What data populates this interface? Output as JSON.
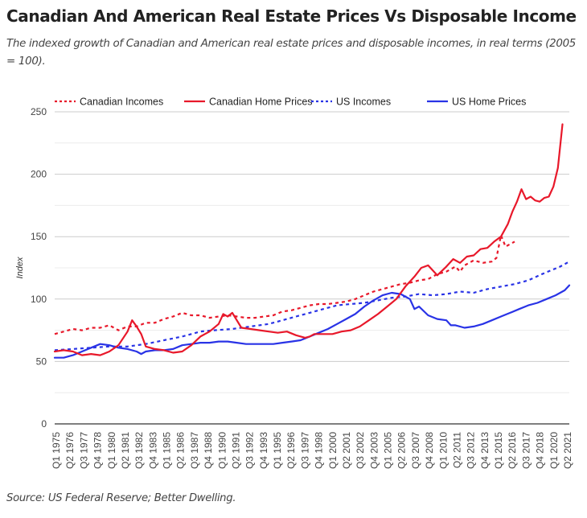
{
  "header": {
    "title": "Canadian And American Real Estate Prices Vs Disposable Income",
    "subtitle": "The indexed growth of Canadian and American real estate prices and disposable incomes, in real terms (2005 = 100)."
  },
  "footer": {
    "source": "Source: US Federal Reserve; Better Dwelling."
  },
  "chart_data": {
    "type": "line",
    "title": "Canadian And American Real Estate Prices Vs Disposable Income",
    "subtitle": "The indexed growth of Canadian and American real estate prices and disposable incomes, in real terms (2005 = 100).",
    "xlabel": "",
    "ylabel": "Index",
    "ylim": [
      0,
      250
    ],
    "yticks": [
      0,
      50,
      100,
      150,
      200,
      250
    ],
    "minor_gridlines": [
      25,
      75,
      125,
      175,
      225
    ],
    "grid": true,
    "legend_position": "top",
    "x_domain_quarters": [
      0,
      185
    ],
    "x_start_label": "Q1 1975",
    "x_end_label": "Q2 2021",
    "x_tick_labels": [
      "Q1 1975",
      "Q2 1976",
      "Q3 1977",
      "Q4 1978",
      "Q1 1980",
      "Q2 1981",
      "Q3 1982",
      "Q4 1983",
      "Q1 1985",
      "Q2 1986",
      "Q3 1987",
      "Q4 1988",
      "Q1 1990",
      "Q2 1991",
      "Q3 1992",
      "Q4 1993",
      "Q1 1995",
      "Q2 1996",
      "Q3 1997",
      "Q4 1998",
      "Q1 2000",
      "Q2 2001",
      "Q3 2002",
      "Q4 2003",
      "Q1 2005",
      "Q2 2006",
      "Q3 2007",
      "Q4 2008",
      "Q1 2010",
      "Q2 2011",
      "Q3 2012",
      "Q4 2013",
      "Q1 2015",
      "Q2 2016",
      "Q3 2017",
      "Q4 2018",
      "Q1 2020",
      "Q2 2021"
    ],
    "x_tick_step_quarters": 5,
    "series": [
      {
        "name": "Canadian Incomes",
        "color": "#e8182a",
        "style": "dotted",
        "points": [
          [
            0,
            72
          ],
          [
            4,
            74
          ],
          [
            8,
            76
          ],
          [
            12,
            75
          ],
          [
            16,
            77
          ],
          [
            20,
            77
          ],
          [
            24,
            79
          ],
          [
            28,
            75
          ],
          [
            32,
            78
          ],
          [
            36,
            78
          ],
          [
            40,
            81
          ],
          [
            44,
            81
          ],
          [
            48,
            84
          ],
          [
            52,
            86
          ],
          [
            56,
            89
          ],
          [
            60,
            87
          ],
          [
            64,
            87
          ],
          [
            68,
            85
          ],
          [
            72,
            86
          ],
          [
            76,
            87
          ],
          [
            80,
            86
          ],
          [
            84,
            85
          ],
          [
            88,
            85
          ],
          [
            92,
            86
          ],
          [
            96,
            87
          ],
          [
            100,
            90
          ],
          [
            104,
            91
          ],
          [
            108,
            93
          ],
          [
            112,
            95
          ],
          [
            116,
            96
          ],
          [
            120,
            96
          ],
          [
            124,
            97
          ],
          [
            128,
            98
          ],
          [
            132,
            100
          ],
          [
            136,
            103
          ],
          [
            140,
            106
          ],
          [
            144,
            108
          ],
          [
            148,
            110
          ],
          [
            152,
            112
          ],
          [
            156,
            113
          ],
          [
            160,
            115
          ],
          [
            164,
            116
          ],
          [
            168,
            120
          ],
          [
            172,
            122
          ],
          [
            176,
            126
          ],
          [
            178,
            122
          ],
          [
            180,
            127
          ],
          [
            184,
            131
          ],
          [
            188,
            129
          ],
          [
            192,
            130
          ],
          [
            194,
            133
          ],
          [
            196,
            151
          ],
          [
            198,
            142
          ],
          [
            200,
            144
          ],
          [
            202,
            146
          ]
        ]
      },
      {
        "name": "Canadian Home Prices",
        "color": "#e8182a",
        "style": "solid",
        "points": [
          [
            0,
            58
          ],
          [
            4,
            59
          ],
          [
            8,
            58
          ],
          [
            12,
            55
          ],
          [
            16,
            56
          ],
          [
            20,
            55
          ],
          [
            24,
            58
          ],
          [
            28,
            63
          ],
          [
            32,
            74
          ],
          [
            34,
            83
          ],
          [
            36,
            78
          ],
          [
            38,
            72
          ],
          [
            40,
            62
          ],
          [
            44,
            60
          ],
          [
            48,
            59
          ],
          [
            52,
            57
          ],
          [
            56,
            58
          ],
          [
            60,
            63
          ],
          [
            64,
            70
          ],
          [
            68,
            74
          ],
          [
            72,
            80
          ],
          [
            74,
            88
          ],
          [
            76,
            86
          ],
          [
            78,
            89
          ],
          [
            82,
            77
          ],
          [
            86,
            76
          ],
          [
            90,
            75
          ],
          [
            94,
            74
          ],
          [
            98,
            73
          ],
          [
            102,
            74
          ],
          [
            106,
            71
          ],
          [
            110,
            69
          ],
          [
            112,
            70
          ],
          [
            114,
            72
          ],
          [
            118,
            72
          ],
          [
            122,
            72
          ],
          [
            126,
            74
          ],
          [
            130,
            75
          ],
          [
            134,
            78
          ],
          [
            138,
            83
          ],
          [
            142,
            88
          ],
          [
            146,
            94
          ],
          [
            150,
            100
          ],
          [
            154,
            110
          ],
          [
            158,
            118
          ],
          [
            161,
            125
          ],
          [
            164,
            127
          ],
          [
            168,
            119
          ],
          [
            172,
            126
          ],
          [
            175,
            132
          ],
          [
            178,
            129
          ],
          [
            181,
            134
          ],
          [
            184,
            135
          ],
          [
            187,
            140
          ],
          [
            190,
            141
          ],
          [
            193,
            146
          ],
          [
            196,
            150
          ],
          [
            199,
            160
          ],
          [
            201,
            170
          ],
          [
            203,
            178
          ],
          [
            205,
            188
          ],
          [
            207,
            180
          ],
          [
            209,
            182
          ],
          [
            211,
            179
          ],
          [
            213,
            178
          ],
          [
            215,
            181
          ],
          [
            217,
            182
          ],
          [
            219,
            190
          ],
          [
            221,
            205
          ],
          [
            223,
            240
          ]
        ]
      },
      {
        "name": "US Incomes",
        "color": "#2933e6",
        "style": "dotted",
        "points": [
          [
            0,
            59
          ],
          [
            8,
            60
          ],
          [
            16,
            61
          ],
          [
            24,
            62
          ],
          [
            32,
            62
          ],
          [
            40,
            64
          ],
          [
            48,
            67
          ],
          [
            56,
            70
          ],
          [
            60,
            72
          ],
          [
            64,
            74
          ],
          [
            70,
            75
          ],
          [
            78,
            76
          ],
          [
            86,
            78
          ],
          [
            94,
            80
          ],
          [
            100,
            83
          ],
          [
            106,
            86
          ],
          [
            112,
            89
          ],
          [
            118,
            92
          ],
          [
            124,
            95
          ],
          [
            130,
            96
          ],
          [
            136,
            97
          ],
          [
            142,
            99
          ],
          [
            148,
            101
          ],
          [
            154,
            102
          ],
          [
            160,
            104
          ],
          [
            166,
            103
          ],
          [
            172,
            104
          ],
          [
            178,
            106
          ],
          [
            184,
            105
          ],
          [
            190,
            108
          ],
          [
            196,
            110
          ],
          [
            202,
            112
          ],
          [
            208,
            115
          ],
          [
            214,
            120
          ],
          [
            218,
            123
          ],
          [
            222,
            126
          ],
          [
            226,
            130
          ]
        ]
      },
      {
        "name": "US Home Prices",
        "color": "#2933e6",
        "style": "solid",
        "points": [
          [
            0,
            53
          ],
          [
            4,
            53
          ],
          [
            8,
            55
          ],
          [
            12,
            58
          ],
          [
            16,
            61
          ],
          [
            20,
            64
          ],
          [
            24,
            63
          ],
          [
            28,
            61
          ],
          [
            32,
            60
          ],
          [
            36,
            58
          ],
          [
            38,
            56
          ],
          [
            40,
            58
          ],
          [
            44,
            59
          ],
          [
            48,
            59
          ],
          [
            52,
            60
          ],
          [
            56,
            63
          ],
          [
            60,
            64
          ],
          [
            64,
            65
          ],
          [
            68,
            65
          ],
          [
            72,
            66
          ],
          [
            76,
            66
          ],
          [
            80,
            65
          ],
          [
            84,
            64
          ],
          [
            88,
            64
          ],
          [
            92,
            64
          ],
          [
            96,
            64
          ],
          [
            100,
            65
          ],
          [
            104,
            66
          ],
          [
            108,
            67
          ],
          [
            112,
            70
          ],
          [
            116,
            73
          ],
          [
            120,
            76
          ],
          [
            124,
            80
          ],
          [
            128,
            84
          ],
          [
            132,
            88
          ],
          [
            136,
            94
          ],
          [
            140,
            99
          ],
          [
            144,
            103
          ],
          [
            148,
            105
          ],
          [
            152,
            104
          ],
          [
            156,
            100
          ],
          [
            158,
            92
          ],
          [
            160,
            94
          ],
          [
            164,
            87
          ],
          [
            168,
            84
          ],
          [
            172,
            83
          ],
          [
            174,
            79
          ],
          [
            176,
            79
          ],
          [
            180,
            77
          ],
          [
            184,
            78
          ],
          [
            188,
            80
          ],
          [
            192,
            83
          ],
          [
            196,
            86
          ],
          [
            200,
            89
          ],
          [
            204,
            92
          ],
          [
            208,
            95
          ],
          [
            212,
            97
          ],
          [
            216,
            100
          ],
          [
            220,
            103
          ],
          [
            224,
            107
          ],
          [
            226,
            111
          ]
        ]
      }
    ]
  }
}
